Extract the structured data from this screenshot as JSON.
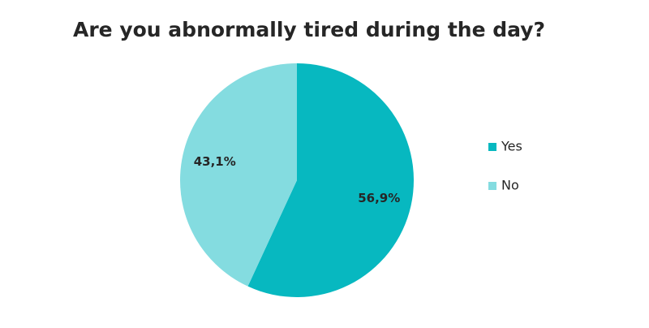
{
  "chart_data": {
    "type": "pie",
    "title": "Are you abnormally tired during the day?",
    "categories": [
      "Yes",
      "No"
    ],
    "values": [
      56.9,
      43.1
    ],
    "value_labels": [
      "56,9%",
      "43,1%"
    ],
    "colors": [
      "#07b8c0",
      "#84dce0"
    ],
    "legend": "right"
  }
}
